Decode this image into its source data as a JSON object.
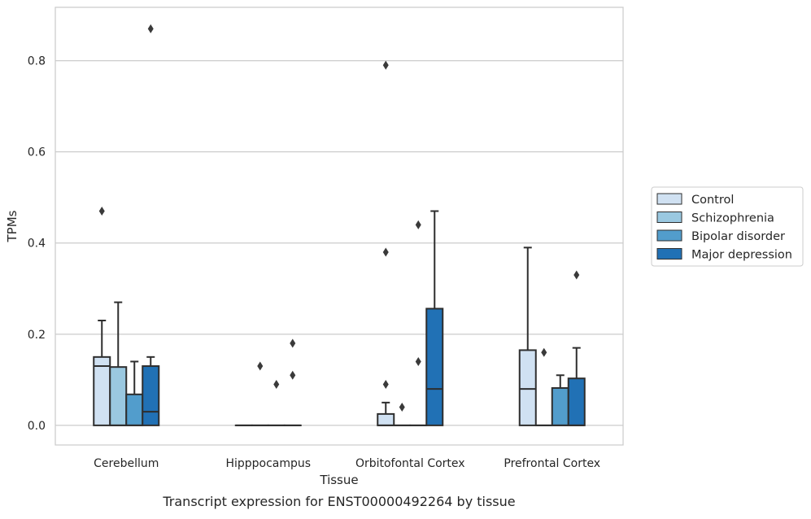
{
  "caption": "Transcript expression for ENST00000492264 by tissue",
  "chart_data": {
    "type": "box",
    "title": "",
    "xlabel": "Tissue",
    "ylabel": "TPMs",
    "ylim": [
      -0.043,
      0.917
    ],
    "yticks": [
      0.0,
      0.2,
      0.4,
      0.6,
      0.8
    ],
    "ytick_labels": [
      "0.0",
      "0.2",
      "0.4",
      "0.6",
      "0.8"
    ],
    "grid": "horizontal",
    "legend_position": "right",
    "categories": [
      "Cerebellum",
      "Hipppocampus",
      "Orbitofontal Cortex",
      "Prefrontal Cortex"
    ],
    "series": [
      {
        "name": "Control",
        "color": "#d0e1f2",
        "boxes": [
          {
            "q1": 0.0,
            "median": 0.13,
            "q3": 0.15,
            "whisker_low": 0.0,
            "whisker_high": 0.23,
            "outliers": [
              0.47
            ]
          },
          {
            "q1": 0.0,
            "median": 0.0,
            "q3": 0.0,
            "whisker_low": 0.0,
            "whisker_high": 0.0,
            "outliers": []
          },
          {
            "q1": 0.0,
            "median": 0.0,
            "q3": 0.025,
            "whisker_low": 0.0,
            "whisker_high": 0.05,
            "outliers": [
              0.09,
              0.38,
              0.79
            ]
          },
          {
            "q1": 0.0,
            "median": 0.08,
            "q3": 0.165,
            "whisker_low": 0.0,
            "whisker_high": 0.39,
            "outliers": []
          }
        ]
      },
      {
        "name": "Schizophrenia",
        "color": "#9ac8e0",
        "boxes": [
          {
            "q1": 0.0,
            "median": 0.0,
            "q3": 0.128,
            "whisker_low": 0.0,
            "whisker_high": 0.27,
            "outliers": []
          },
          {
            "q1": 0.0,
            "median": 0.0,
            "q3": 0.0,
            "whisker_low": 0.0,
            "whisker_high": 0.0,
            "outliers": [
              0.13
            ]
          },
          {
            "q1": 0.0,
            "median": 0.0,
            "q3": 0.0,
            "whisker_low": 0.0,
            "whisker_high": 0.0,
            "outliers": [
              0.04
            ]
          },
          {
            "q1": 0.0,
            "median": 0.0,
            "q3": 0.0,
            "whisker_low": 0.0,
            "whisker_high": 0.0,
            "outliers": [
              0.16
            ]
          }
        ]
      },
      {
        "name": "Bipolar disorder",
        "color": "#529dcc",
        "boxes": [
          {
            "q1": 0.0,
            "median": 0.0,
            "q3": 0.068,
            "whisker_low": 0.0,
            "whisker_high": 0.14,
            "outliers": []
          },
          {
            "q1": 0.0,
            "median": 0.0,
            "q3": 0.0,
            "whisker_low": 0.0,
            "whisker_high": 0.0,
            "outliers": [
              0.09
            ]
          },
          {
            "q1": 0.0,
            "median": 0.0,
            "q3": 0.0,
            "whisker_low": 0.0,
            "whisker_high": 0.0,
            "outliers": [
              0.14,
              0.44
            ]
          },
          {
            "q1": 0.0,
            "median": 0.0,
            "q3": 0.082,
            "whisker_low": 0.0,
            "whisker_high": 0.11,
            "outliers": []
          }
        ]
      },
      {
        "name": "Major depression",
        "color": "#2171b5",
        "boxes": [
          {
            "q1": 0.0,
            "median": 0.03,
            "q3": 0.13,
            "whisker_low": 0.0,
            "whisker_high": 0.15,
            "outliers": [
              0.87
            ]
          },
          {
            "q1": 0.0,
            "median": 0.0,
            "q3": 0.0,
            "whisker_low": 0.0,
            "whisker_high": 0.0,
            "outliers": [
              0.11,
              0.18
            ]
          },
          {
            "q1": 0.0,
            "median": 0.08,
            "q3": 0.256,
            "whisker_low": 0.0,
            "whisker_high": 0.47,
            "outliers": []
          },
          {
            "q1": 0.0,
            "median": 0.0,
            "q3": 0.103,
            "whisker_low": 0.0,
            "whisker_high": 0.17,
            "outliers": [
              0.33
            ]
          }
        ]
      }
    ]
  }
}
